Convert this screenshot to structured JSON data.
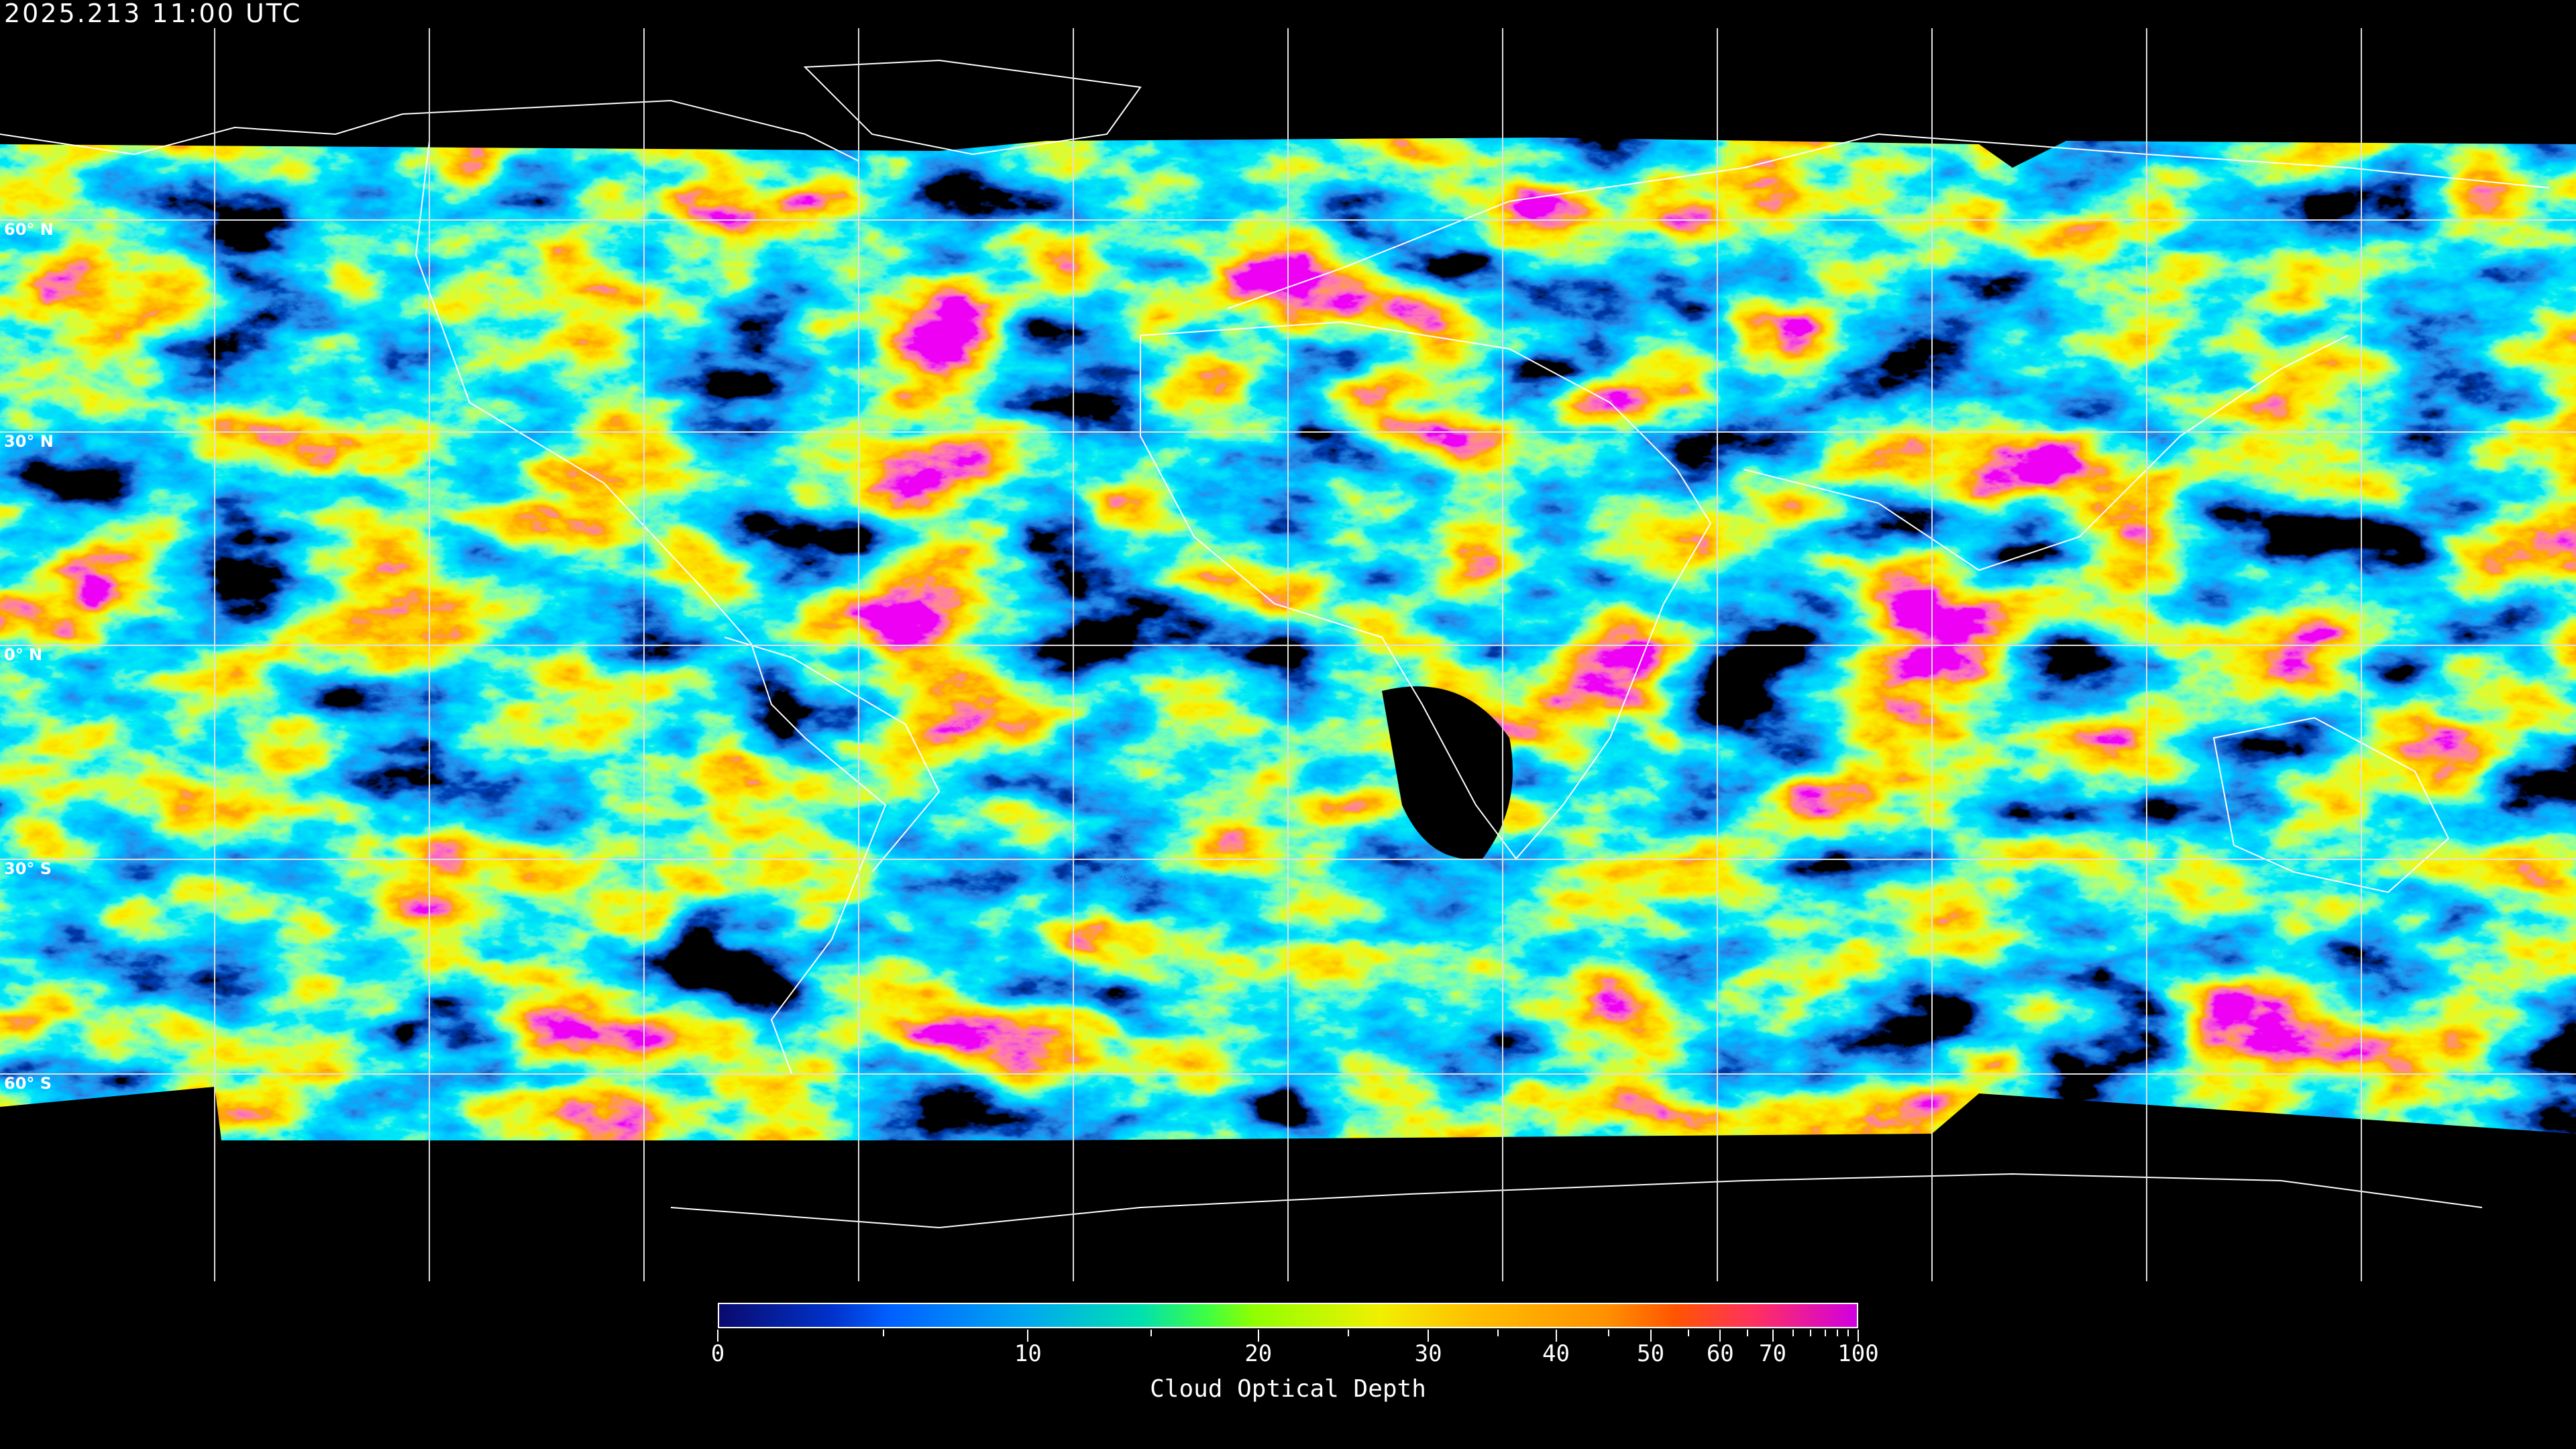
{
  "header": {
    "timestamp": "2025.213 11:00 UTC"
  },
  "map": {
    "projection": "equirectangular",
    "variable": "cloud optical depth",
    "lat_labels": [
      "60° N",
      "30° N",
      "0° N",
      "30° S",
      "60° S"
    ],
    "gridlines": true,
    "coastlines_color": "#ffffff",
    "background": "#000000"
  },
  "colorbar": {
    "label": "Cloud Optical Depth",
    "ticks": [
      "0",
      "10",
      "20",
      "30",
      "40",
      "50",
      "60",
      "70",
      "100"
    ],
    "range": [
      0,
      100
    ],
    "colors": [
      "#0a0a6e",
      "#0060ff",
      "#00a8f0",
      "#40ff40",
      "#f0f000",
      "#ffc000",
      "#ff5500",
      "#d000e0"
    ]
  }
}
